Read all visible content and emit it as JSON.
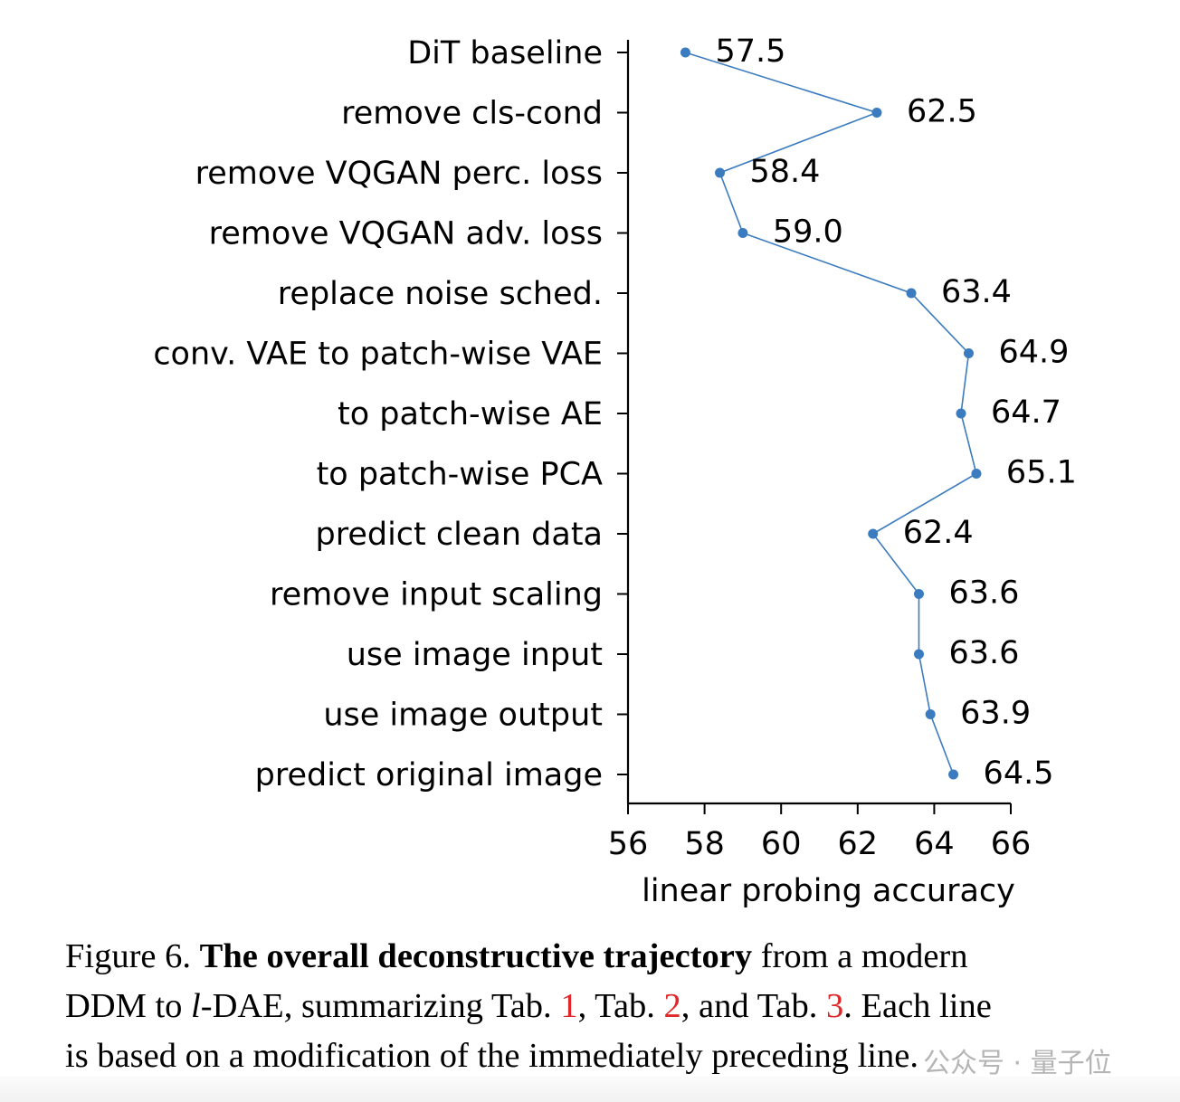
{
  "chart_data": {
    "type": "line",
    "orientation": "horizontal",
    "title": "",
    "xlabel": "linear probing accuracy",
    "ylabel": "",
    "xlim": [
      56,
      66
    ],
    "xticks": [
      56,
      58,
      60,
      62,
      64,
      66
    ],
    "xtick_labels": [
      "56",
      "58",
      "60",
      "62",
      "64",
      "66"
    ],
    "categories": [
      "DiT baseline",
      "remove cls-cond",
      "remove VQGAN perc. loss",
      "remove VQGAN adv. loss",
      "replace noise sched.",
      "conv. VAE to patch-wise VAE",
      "to patch-wise AE",
      "to patch-wise PCA",
      "predict clean data",
      "remove input scaling",
      "use image input",
      "use image output",
      "predict original image"
    ],
    "values": [
      57.5,
      62.5,
      58.4,
      59.0,
      63.4,
      64.9,
      64.7,
      65.1,
      62.4,
      63.6,
      63.6,
      63.9,
      64.5
    ],
    "data_labels": [
      "57.5",
      "62.5",
      "58.4",
      "59.0",
      "63.4",
      "64.9",
      "64.7",
      "65.1",
      "62.4",
      "63.6",
      "63.6",
      "63.9",
      "64.5"
    ],
    "series_color": "#3b7bbf",
    "grid": false,
    "legend": "none"
  },
  "caption": {
    "prefix": "Figure 6. ",
    "bold": "The overall deconstructive trajectory",
    "line1_rest": " from a modern",
    "line2_a": "DDM to ",
    "line2_italic": "l",
    "line2_b": "-DAE, summarizing Tab. ",
    "ref1": "1",
    "line2_c": ", Tab. ",
    "ref2": "2",
    "line2_d": ", and Tab. ",
    "ref3": "3",
    "line2_e": ". Each line",
    "line3": "is based on a modification of the immediately preceding line.",
    "ref_color": "#e0282a"
  },
  "watermark": "公众号 · 量子位"
}
